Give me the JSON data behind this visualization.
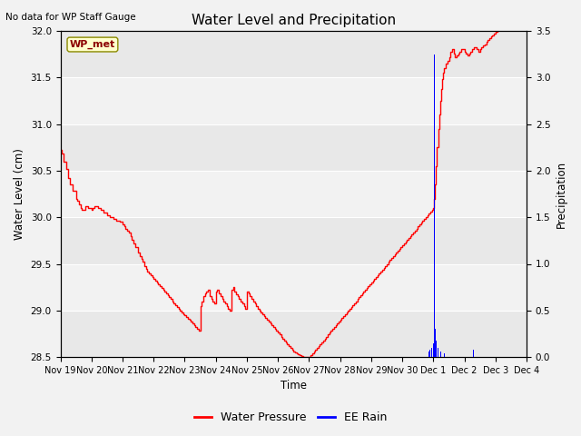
{
  "title": "Water Level and Precipitation",
  "subtitle": "No data for WP Staff Gauge",
  "xlabel": "Time",
  "ylabel_left": "Water Level (cm)",
  "ylabel_right": "Precipitation",
  "annotation": "WP_met",
  "ylim_left": [
    28.5,
    32.0
  ],
  "ylim_right": [
    0.0,
    3.5
  ],
  "legend_labels": [
    "Water Pressure",
    "EE Rain"
  ],
  "background_color": "#f2f2f2",
  "water_pressure_t": [
    0.0,
    0.05,
    0.1,
    0.18,
    0.25,
    0.32,
    0.4,
    0.5,
    0.55,
    0.6,
    0.65,
    0.7,
    0.8,
    0.9,
    1.0,
    1.05,
    1.1,
    1.2,
    1.3,
    1.4,
    1.5,
    1.6,
    1.7,
    1.8,
    1.9,
    2.0,
    2.05,
    2.1,
    2.15,
    2.2,
    2.25,
    2.3,
    2.35,
    2.4,
    2.5,
    2.55,
    2.6,
    2.65,
    2.7,
    2.75,
    2.8,
    2.85,
    2.9,
    2.95,
    3.0,
    3.05,
    3.1,
    3.15,
    3.2,
    3.25,
    3.3,
    3.35,
    3.4,
    3.45,
    3.5,
    3.55,
    3.6,
    3.65,
    3.7,
    3.75,
    3.8,
    3.85,
    3.9,
    3.95,
    4.0,
    4.05,
    4.1,
    4.15,
    4.2,
    4.25,
    4.3,
    4.35,
    4.4,
    4.45,
    4.5,
    4.55,
    4.6,
    4.65,
    4.7,
    4.75,
    4.8,
    4.85,
    4.9,
    4.95,
    5.0,
    5.05,
    5.1,
    5.15,
    5.2,
    5.25,
    5.3,
    5.35,
    5.4,
    5.45,
    5.5,
    5.55,
    5.6,
    5.65,
    5.7,
    5.75,
    5.8,
    5.85,
    5.9,
    5.95,
    6.0,
    6.05,
    6.1,
    6.15,
    6.2,
    6.25,
    6.3,
    6.35,
    6.4,
    6.45,
    6.5,
    6.55,
    6.6,
    6.65,
    6.7,
    6.75,
    6.8,
    6.85,
    6.9,
    6.95,
    7.0,
    7.05,
    7.1,
    7.15,
    7.2,
    7.25,
    7.3,
    7.35,
    7.4,
    7.45,
    7.5,
    7.55,
    7.6,
    7.65,
    7.7,
    7.75,
    7.8,
    7.85,
    7.9,
    7.95,
    8.0,
    8.05,
    8.1,
    8.15,
    8.2,
    8.25,
    8.3,
    8.35,
    8.4,
    8.45,
    8.5,
    8.55,
    8.6,
    8.65,
    8.7,
    8.75,
    8.8,
    8.85,
    8.9,
    8.95,
    9.0,
    9.05,
    9.1,
    9.15,
    9.2,
    9.25,
    9.3,
    9.35,
    9.4,
    9.45,
    9.5,
    9.55,
    9.6,
    9.65,
    9.7,
    9.75,
    9.8,
    9.85,
    9.9,
    9.95,
    10.0,
    10.05,
    10.1,
    10.15,
    10.2,
    10.25,
    10.3,
    10.35,
    10.4,
    10.45,
    10.5,
    10.55,
    10.6,
    10.65,
    10.7,
    10.75,
    10.8,
    10.85,
    10.9,
    10.95,
    11.0,
    11.05,
    11.1,
    11.15,
    11.2,
    11.25,
    11.3,
    11.35,
    11.4,
    11.45,
    11.5,
    11.55,
    11.6,
    11.65,
    11.7,
    11.75,
    11.8,
    11.85,
    11.9,
    11.95,
    12.0,
    12.03,
    12.06,
    12.09,
    12.12,
    12.15,
    12.18,
    12.21,
    12.24,
    12.27,
    12.3,
    12.35,
    12.4,
    12.45,
    12.5,
    12.55,
    12.6,
    12.65,
    12.7,
    12.75,
    12.8,
    12.85,
    12.9,
    12.95,
    13.0,
    13.05,
    13.1,
    13.15,
    13.2,
    13.25,
    13.3,
    13.35,
    13.4,
    13.45,
    13.5,
    13.55,
    13.6,
    13.65,
    13.7,
    13.75,
    13.8,
    13.85,
    13.9,
    13.95,
    14.0,
    14.05,
    14.1,
    14.15,
    14.2,
    14.25,
    14.3,
    14.35,
    14.4,
    14.45
  ],
  "water_pressure_v": [
    30.72,
    30.68,
    30.6,
    30.52,
    30.42,
    30.35,
    30.28,
    30.2,
    30.18,
    30.14,
    30.1,
    30.08,
    30.12,
    30.1,
    30.08,
    30.1,
    30.12,
    30.1,
    30.08,
    30.05,
    30.02,
    30.0,
    29.98,
    29.96,
    29.95,
    29.92,
    29.9,
    29.88,
    29.86,
    29.84,
    29.8,
    29.76,
    29.72,
    29.68,
    29.62,
    29.58,
    29.55,
    29.52,
    29.48,
    29.45,
    29.42,
    29.4,
    29.38,
    29.36,
    29.34,
    29.32,
    29.3,
    29.28,
    29.26,
    29.24,
    29.22,
    29.2,
    29.18,
    29.16,
    29.14,
    29.12,
    29.1,
    29.08,
    29.06,
    29.04,
    29.02,
    29.0,
    28.98,
    28.96,
    28.95,
    28.93,
    28.91,
    28.9,
    28.88,
    28.86,
    28.84,
    28.82,
    28.8,
    28.78,
    29.05,
    29.1,
    29.15,
    29.18,
    29.2,
    29.22,
    29.15,
    29.12,
    29.1,
    29.08,
    29.2,
    29.22,
    29.18,
    29.15,
    29.12,
    29.1,
    29.08,
    29.05,
    29.02,
    29.0,
    29.22,
    29.25,
    29.2,
    29.17,
    29.15,
    29.12,
    29.1,
    29.08,
    29.05,
    29.02,
    29.2,
    29.18,
    29.15,
    29.12,
    29.1,
    29.08,
    29.05,
    29.02,
    29.0,
    28.98,
    28.96,
    28.94,
    28.92,
    28.9,
    28.88,
    28.86,
    28.84,
    28.82,
    28.8,
    28.78,
    28.76,
    28.74,
    28.72,
    28.7,
    28.68,
    28.66,
    28.64,
    28.62,
    28.6,
    28.58,
    28.56,
    28.55,
    28.54,
    28.53,
    28.52,
    28.51,
    28.5,
    28.5,
    28.5,
    28.5,
    28.5,
    28.52,
    28.54,
    28.56,
    28.58,
    28.6,
    28.62,
    28.64,
    28.66,
    28.68,
    28.7,
    28.72,
    28.74,
    28.76,
    28.78,
    28.8,
    28.82,
    28.84,
    28.86,
    28.88,
    28.9,
    28.92,
    28.94,
    28.96,
    28.98,
    29.0,
    29.02,
    29.04,
    29.06,
    29.08,
    29.1,
    29.12,
    29.14,
    29.16,
    29.18,
    29.2,
    29.22,
    29.24,
    29.26,
    29.28,
    29.3,
    29.32,
    29.34,
    29.36,
    29.38,
    29.4,
    29.42,
    29.44,
    29.46,
    29.48,
    29.5,
    29.52,
    29.54,
    29.56,
    29.58,
    29.6,
    29.62,
    29.64,
    29.66,
    29.68,
    29.7,
    29.72,
    29.74,
    29.76,
    29.78,
    29.8,
    29.82,
    29.84,
    29.86,
    29.88,
    29.9,
    29.92,
    29.94,
    29.96,
    29.98,
    30.0,
    30.02,
    30.04,
    30.06,
    30.08,
    30.1,
    30.2,
    30.35,
    30.55,
    30.75,
    30.95,
    31.1,
    31.25,
    31.38,
    31.48,
    31.55,
    31.6,
    31.65,
    31.68,
    31.72,
    31.78,
    31.8,
    31.76,
    31.72,
    31.74,
    31.76,
    31.78,
    31.8,
    31.8,
    31.78,
    31.76,
    31.74,
    31.76,
    31.78,
    31.8,
    31.82,
    31.82,
    31.8,
    31.78,
    31.8,
    31.82,
    31.84,
    31.85,
    31.88,
    31.9,
    31.92,
    31.94,
    31.95,
    31.97,
    31.99,
    32.01,
    32.03,
    32.06,
    32.09,
    32.12,
    32.15,
    32.18,
    32.2,
    32.22
  ],
  "rain_t": [
    11.85,
    11.9,
    11.95,
    12.0,
    12.03,
    12.06,
    12.09,
    12.15,
    12.25,
    12.35,
    13.3
  ],
  "rain_v": [
    0.06,
    0.08,
    0.1,
    0.15,
    3.25,
    0.3,
    0.18,
    0.1,
    0.06,
    0.04,
    0.08
  ],
  "xtick_labels": [
    "Nov 19",
    "Nov 20",
    "Nov 21",
    "Nov 22",
    "Nov 23",
    "Nov 24",
    "Nov 25",
    "Nov 26",
    "Nov 27",
    "Nov 28",
    "Nov 29",
    "Nov 30",
    "Dec 1",
    "Dec 2",
    "Dec 3",
    "Dec 4"
  ],
  "xtick_positions": [
    0,
    1,
    2,
    3,
    4,
    5,
    6,
    7,
    8,
    9,
    10,
    11,
    12,
    13,
    14,
    15
  ],
  "yticks_left": [
    28.5,
    29.0,
    29.5,
    30.0,
    30.5,
    31.0,
    31.5,
    32.0
  ],
  "yticks_right": [
    0.0,
    0.5,
    1.0,
    1.5,
    2.0,
    2.5,
    3.0,
    3.5
  ]
}
